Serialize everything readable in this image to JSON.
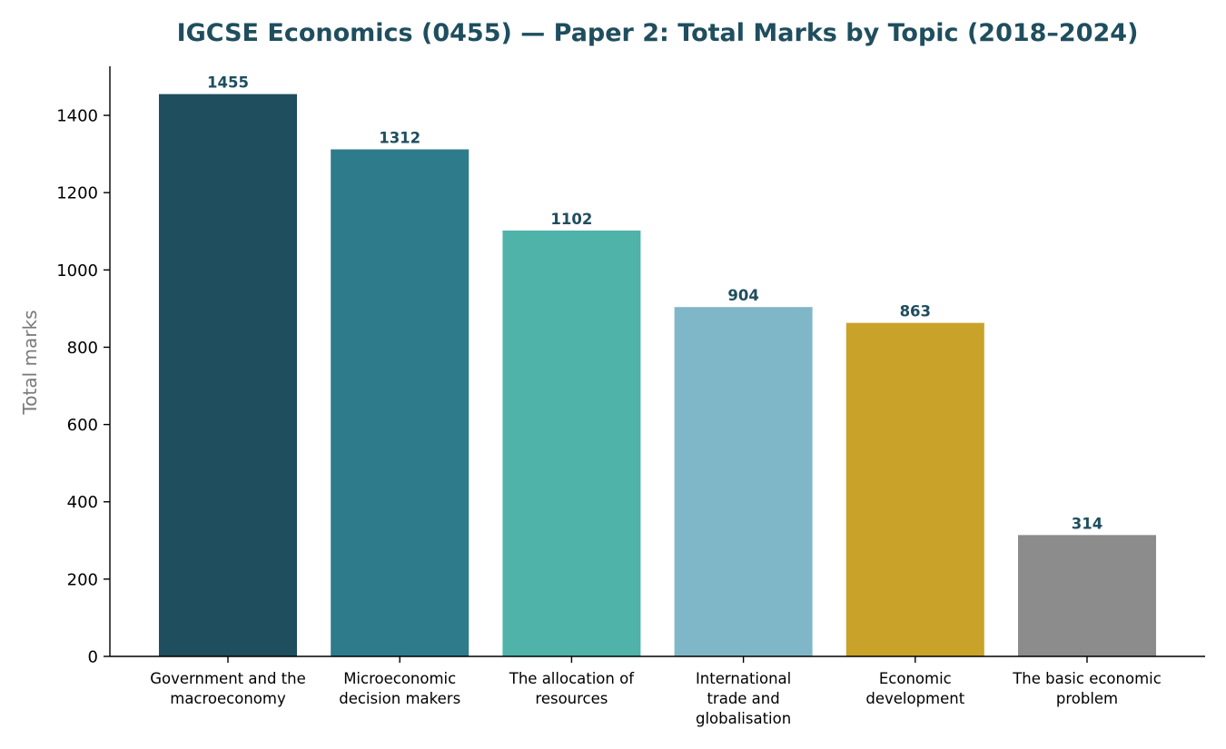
{
  "chart_data": {
    "type": "bar",
    "title": "IGCSE Economics (0455) — Paper 2: Total Marks by Topic (2018–2024)",
    "xlabel": "",
    "ylabel": "Total marks",
    "categories": [
      [
        "Government and the",
        "macroeconomy"
      ],
      [
        "Microeconomic",
        "decision makers"
      ],
      [
        "The allocation of",
        "resources"
      ],
      [
        "International",
        "trade and",
        "globalisation"
      ],
      [
        "Economic",
        "development"
      ],
      [
        "The basic economic",
        "problem"
      ]
    ],
    "values": [
      1455,
      1312,
      1102,
      904,
      863,
      314
    ],
    "value_labels": [
      "1455",
      "1312",
      "1102",
      "904",
      "863",
      "314"
    ],
    "colors": [
      "#1f4e5e",
      "#2e7b8c",
      "#50b3a9",
      "#80b7c8",
      "#c9a22a",
      "#8c8c8c"
    ],
    "ylim": [
      0,
      1527
    ],
    "yticks": [
      0,
      200,
      400,
      600,
      800,
      1000,
      1200,
      1400
    ],
    "ytick_labels": [
      "0",
      "200",
      "400",
      "600",
      "800",
      "1000",
      "1200",
      "1400"
    ],
    "grid": false,
    "legend": "none"
  }
}
